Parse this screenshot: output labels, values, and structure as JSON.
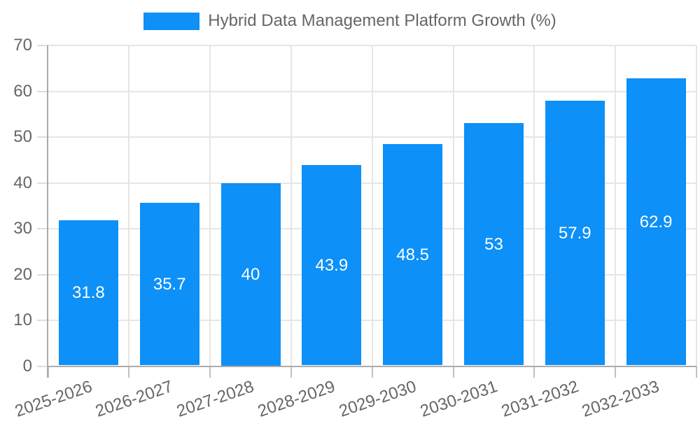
{
  "chart_data": {
    "type": "bar",
    "title": "Hybrid Data Management Platform Growth (%)",
    "categories": [
      "2025-2026",
      "2026-2027",
      "2027-2028",
      "2028-2029",
      "2029-2030",
      "2030-2031",
      "2031-2032",
      "2032-2033"
    ],
    "values": [
      31.8,
      35.7,
      40,
      43.9,
      48.5,
      53,
      57.9,
      62.9
    ],
    "xlabel": "",
    "ylabel": "",
    "ylim": [
      0,
      70
    ],
    "ytick_step": 10,
    "grid": true,
    "legend_position": "top-center",
    "colors": {
      "bar": "#0d90f7",
      "value_label": "#ffffff",
      "tick_text": "#666666",
      "legend_text": "#666666",
      "grid": "#e6e6e6",
      "y_tickmark": "#dcdcdc",
      "x_tickmark": "#c0c0c0",
      "axis_border": "#ababab",
      "background": "#ffffff"
    }
  }
}
